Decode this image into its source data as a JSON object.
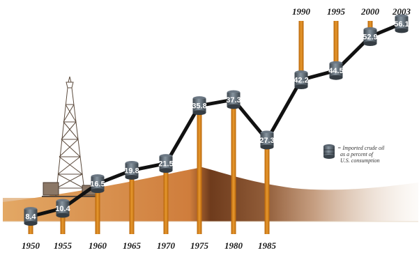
{
  "chart_data": {
    "type": "line",
    "x": [
      "1950",
      "1955",
      "1960",
      "1965",
      "1970",
      "1975",
      "1980",
      "1985",
      "1990",
      "1995",
      "2000",
      "2003"
    ],
    "values": [
      8.4,
      10.4,
      16.5,
      19.8,
      21.5,
      35.8,
      37.3,
      27.3,
      42.2,
      44.5,
      52.9,
      56.1
    ],
    "title": "",
    "xlabel": "",
    "ylabel": "",
    "legend": {
      "marker": "oil-barrel",
      "lines": [
        "= Imported crude oil",
        "as a percent of",
        "U.S. consumption"
      ]
    },
    "colors": {
      "line": "#111111",
      "pillar": "#d9820f",
      "barrel": "#5e6a74",
      "sand": "#c8783a"
    },
    "grid": false
  }
}
